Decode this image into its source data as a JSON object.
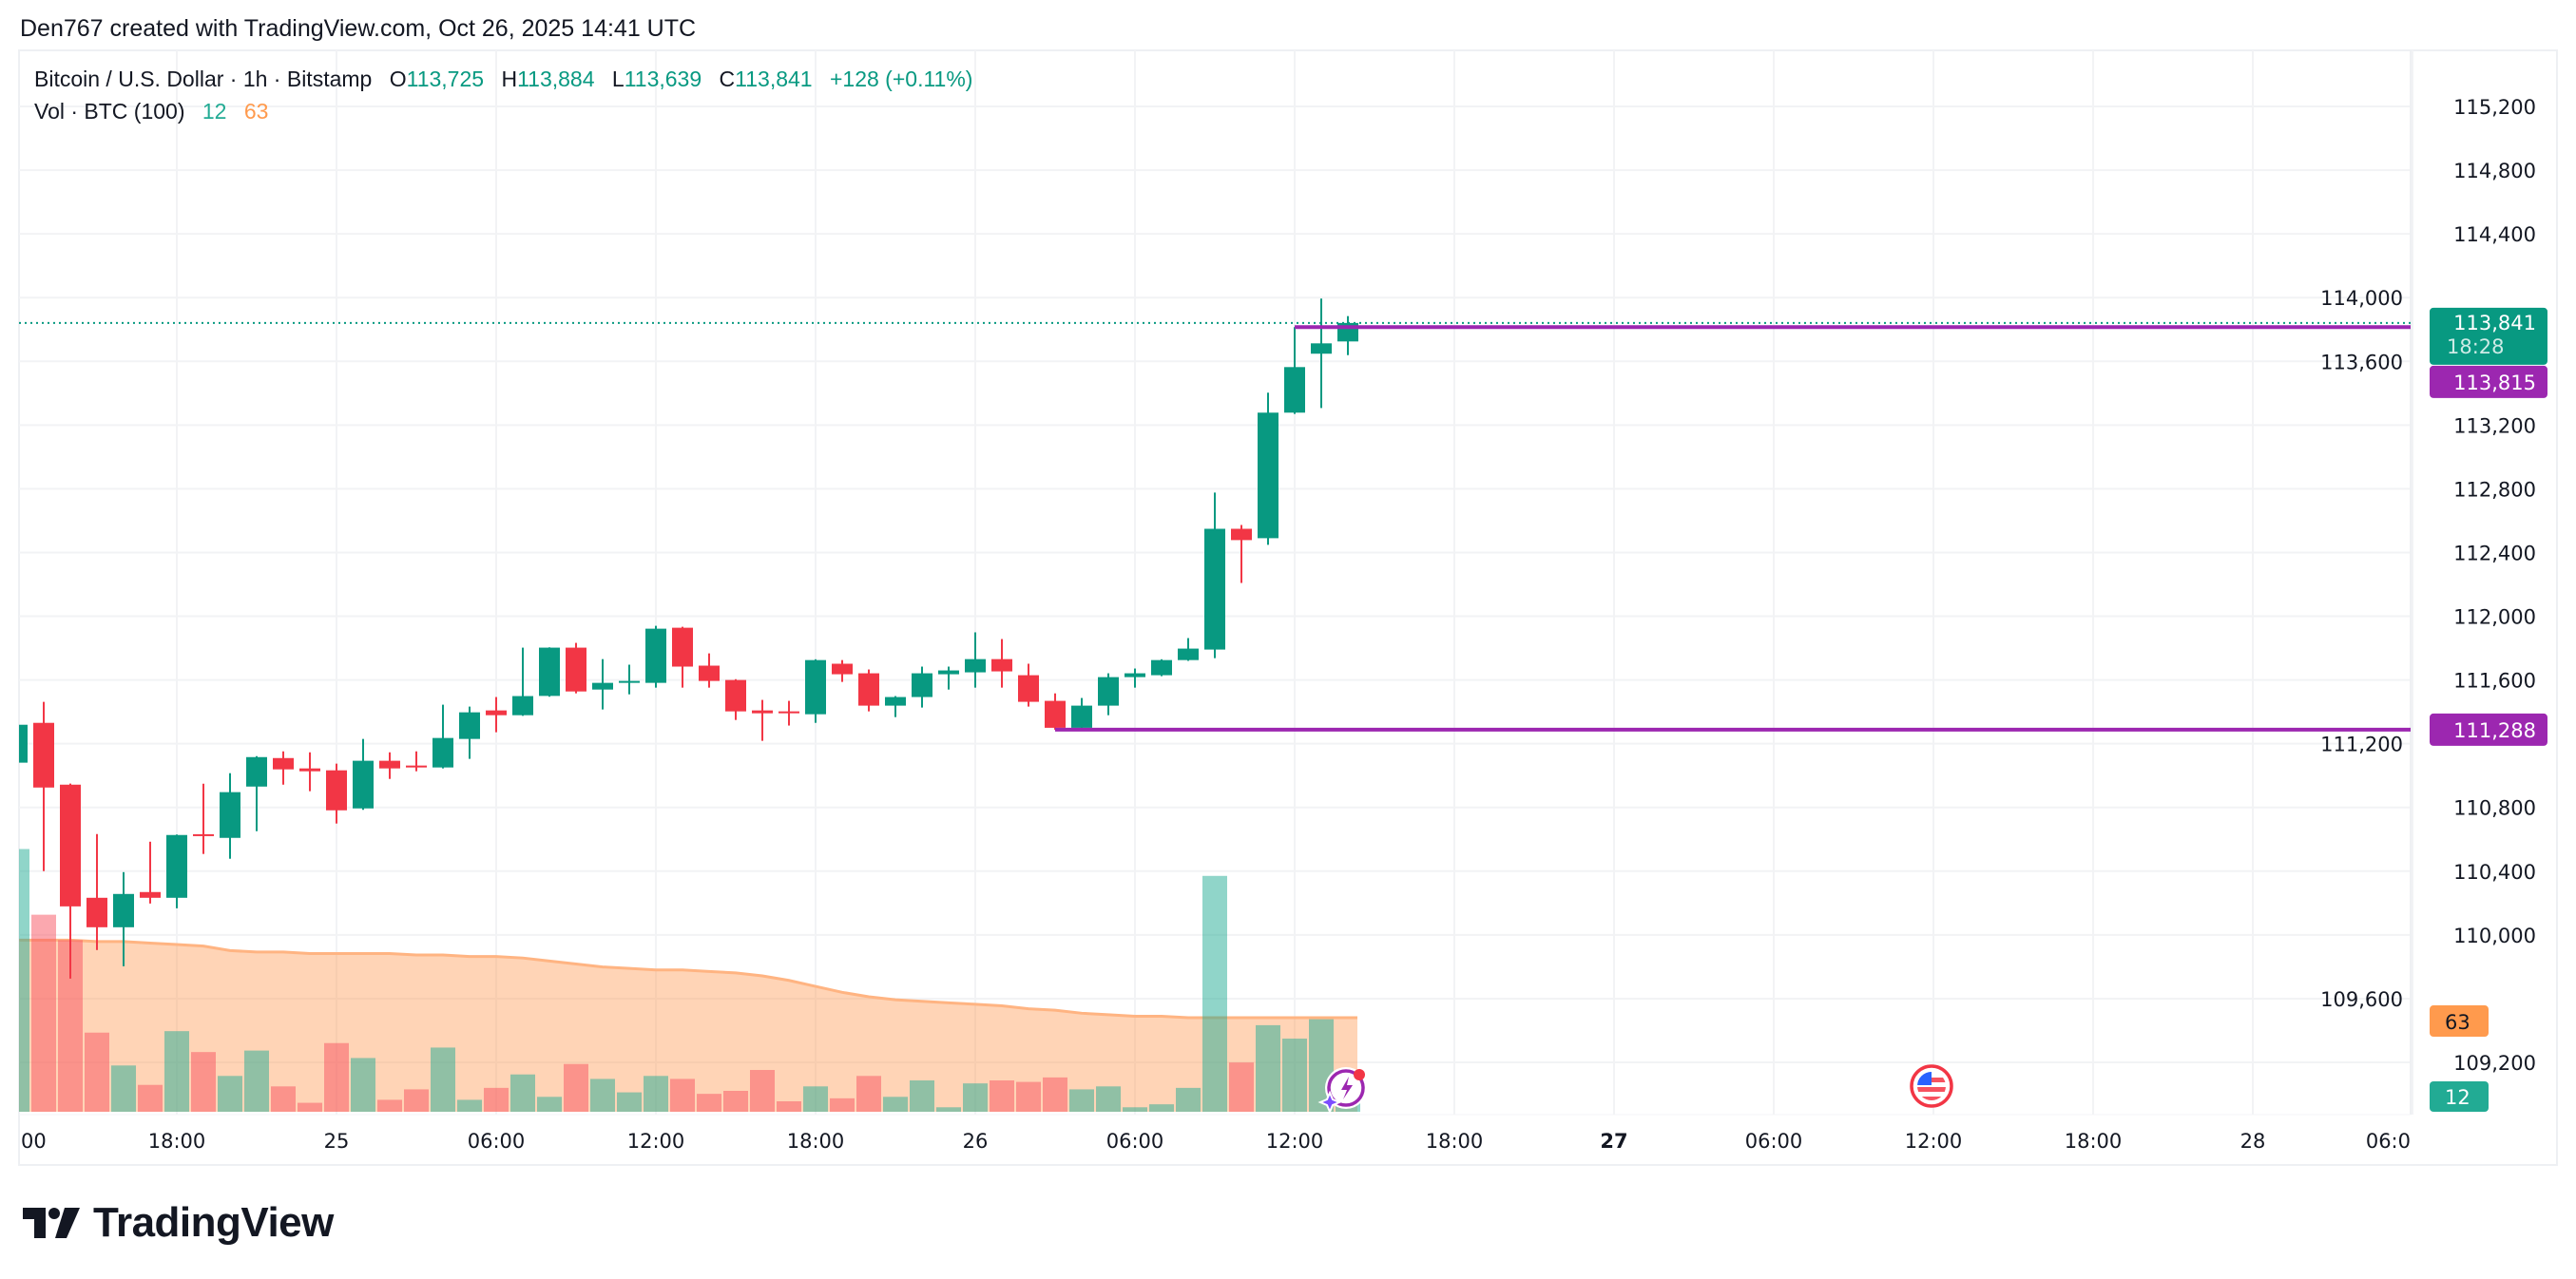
{
  "attribution": "Den767 created with TradingView.com, Oct 26, 2025 14:41 UTC",
  "legend": {
    "symbol": "Bitcoin / U.S. Dollar · 1h · Bitstamp",
    "open_label": "O",
    "open": "113,725",
    "high_label": "H",
    "high": "113,884",
    "low_label": "L",
    "low": "113,639",
    "close_label": "C",
    "close": "113,841",
    "change": "+128 (+0.11%)",
    "volume_title": "Vol · BTC (100)",
    "volume_value": "12",
    "volume_ma_value": "63"
  },
  "price_axis": {
    "ticks": [
      "115,200",
      "114,800",
      "114,400",
      "114,000",
      "113,600",
      "113,200",
      "112,800",
      "112,400",
      "112,000",
      "111,600",
      "111,200",
      "110,800",
      "110,400",
      "110,000",
      "109,600",
      "109,200"
    ],
    "current_price_tag": "113,841",
    "countdown": "18:28",
    "line_tags": [
      "113,815",
      "111,288"
    ],
    "volume_ma_tag": "63",
    "volume_tag": "12"
  },
  "time_axis": {
    "ticks": [
      "00",
      "18:00",
      "25",
      "06:00",
      "12:00",
      "18:00",
      "26",
      "06:00",
      "12:00",
      "18:00",
      "27",
      "06:00",
      "12:00",
      "18:00",
      "28",
      "06:0"
    ],
    "bold_ticks": [
      "27"
    ]
  },
  "icons": {
    "ideas": "lightning-sparkle-icon",
    "event": "us-flag-icon"
  },
  "colors": {
    "up": "#089981",
    "down": "#f23645",
    "volume_up": "#22ab94",
    "volume_down": "#f7525f",
    "volume_ma": "#ff9a4d",
    "horizontal_line": "#9c27b0"
  },
  "logo": {
    "text": "TradingView"
  },
  "chart_data": {
    "type": "candlestick",
    "symbol": "Bitcoin / U.S. Dollar",
    "interval": "1h",
    "ylim": [
      108872,
      115552
    ],
    "grid": true,
    "current_price": 113841,
    "horizontal_lines": [
      {
        "price": 113815,
        "from_time": "Oct 26 12:00"
      },
      {
        "price": 111288,
        "from_time": "Oct 26 03:00"
      }
    ],
    "time": [
      "Oct 24 12:00",
      "Oct 24 13:00",
      "Oct 24 14:00",
      "Oct 24 15:00",
      "Oct 24 16:00",
      "Oct 24 17:00",
      "Oct 24 18:00",
      "Oct 24 19:00",
      "Oct 24 20:00",
      "Oct 24 21:00",
      "Oct 24 22:00",
      "Oct 24 23:00",
      "Oct 25 00:00",
      "Oct 25 01:00",
      "Oct 25 02:00",
      "Oct 25 03:00",
      "Oct 25 04:00",
      "Oct 25 05:00",
      "Oct 25 06:00",
      "Oct 25 07:00",
      "Oct 25 08:00",
      "Oct 25 09:00",
      "Oct 25 10:00",
      "Oct 25 11:00",
      "Oct 25 12:00",
      "Oct 25 13:00",
      "Oct 25 14:00",
      "Oct 25 15:00",
      "Oct 25 16:00",
      "Oct 25 17:00",
      "Oct 25 18:00",
      "Oct 25 19:00",
      "Oct 25 20:00",
      "Oct 25 21:00",
      "Oct 25 22:00",
      "Oct 25 23:00",
      "Oct 26 00:00",
      "Oct 26 01:00",
      "Oct 26 02:00",
      "Oct 26 03:00",
      "Oct 26 04:00",
      "Oct 26 05:00",
      "Oct 26 06:00",
      "Oct 26 07:00",
      "Oct 26 08:00",
      "Oct 26 09:00",
      "Oct 26 10:00",
      "Oct 26 11:00",
      "Oct 26 12:00",
      "Oct 26 13:00",
      "Oct 26 14:00"
    ],
    "open": [
      111081,
      111331,
      110943,
      110233,
      110048,
      110269,
      110233,
      110632,
      110609,
      110931,
      111110,
      111045,
      111033,
      110794,
      111093,
      111063,
      111051,
      111230,
      111409,
      111379,
      111500,
      111803,
      111540,
      111582,
      111582,
      111928,
      111690,
      111600,
      111409,
      111403,
      111385,
      111702,
      111642,
      111439,
      111493,
      111636,
      111648,
      111731,
      111630,
      111469,
      111300,
      111439,
      111618,
      111630,
      111725,
      111791,
      112549,
      112490,
      113278,
      113648,
      113725
    ],
    "high": [
      111330,
      111463,
      110950,
      110633,
      110394,
      110585,
      110630,
      110949,
      111015,
      111122,
      111152,
      111146,
      111075,
      111230,
      111146,
      111152,
      111445,
      111433,
      111493,
      111803,
      111805,
      111833,
      111731,
      111696,
      111940,
      111934,
      111767,
      111605,
      111475,
      111469,
      111730,
      111725,
      111666,
      111499,
      111684,
      111684,
      111899,
      111857,
      111702,
      111516,
      111487,
      111642,
      111672,
      111730,
      111863,
      112776,
      112573,
      113403,
      113815,
      113994,
      113884
    ],
    "low": [
      111070,
      110400,
      109726,
      109905,
      109803,
      110197,
      110167,
      110508,
      110478,
      110651,
      110943,
      110902,
      110699,
      110785,
      110979,
      111027,
      111045,
      111105,
      111272,
      111375,
      111495,
      111516,
      111415,
      111510,
      111552,
      111552,
      111552,
      111349,
      111218,
      111314,
      111331,
      111588,
      111403,
      111367,
      111427,
      111540,
      111552,
      111552,
      111433,
      111288,
      111290,
      111379,
      111552,
      111624,
      111720,
      111737,
      112209,
      112448,
      113270,
      113307,
      113639
    ],
    "close": [
      111319,
      110925,
      110179,
      110048,
      110257,
      110233,
      110627,
      110620,
      110896,
      111116,
      111039,
      111027,
      110782,
      111093,
      111045,
      111051,
      111236,
      111397,
      111379,
      111499,
      111803,
      111528,
      111582,
      111594,
      111922,
      111684,
      111594,
      111403,
      111391,
      111391,
      111725,
      111636,
      111439,
      111493,
      111642,
      111660,
      111731,
      111654,
      111463,
      111300,
      111439,
      111618,
      111642,
      111725,
      111797,
      112549,
      112478,
      113278,
      113564,
      113713,
      113841
    ],
    "volume": [
      176,
      132,
      115,
      53,
      31,
      18,
      54,
      40,
      24,
      41,
      17,
      6,
      46,
      36,
      8,
      15,
      43,
      8,
      16,
      25,
      10,
      32,
      22,
      13,
      24,
      22,
      12,
      14,
      28,
      7,
      17,
      9,
      24,
      10,
      21,
      3,
      19,
      21,
      20,
      23,
      15,
      17,
      3,
      5,
      16,
      158,
      33,
      58,
      49,
      62,
      12
    ],
    "volume_ma": [
      115,
      115,
      115,
      114,
      114,
      113,
      112,
      111,
      108,
      107,
      107,
      106,
      106,
      106,
      106,
      105,
      105,
      104,
      104,
      103,
      101,
      99,
      97,
      96,
      95,
      95,
      94,
      93,
      91,
      88,
      84,
      80,
      77,
      75,
      74,
      73,
      72,
      71,
      69,
      68,
      66,
      65,
      64,
      64,
      63,
      63,
      63,
      63,
      63,
      63,
      63
    ]
  }
}
